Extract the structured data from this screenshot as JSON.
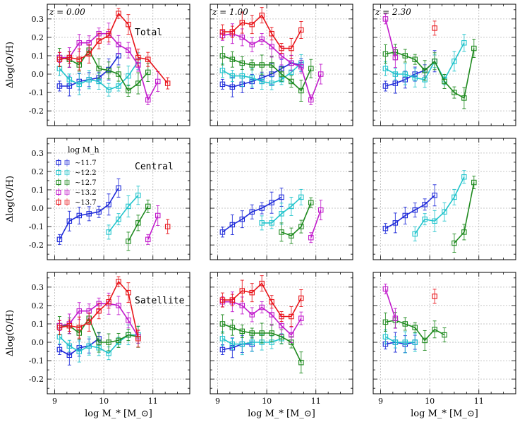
{
  "chart_data": {
    "type": "line",
    "grid": true,
    "x_axis": {
      "label": "log M_* [M_⊙]",
      "ticks": [
        "9",
        "10",
        "11"
      ],
      "tick_values": [
        9,
        10,
        11
      ],
      "range": [
        8.85,
        11.75
      ]
    },
    "y_axis": {
      "label": "Δlog(O/H)",
      "ticks": [
        "0.3",
        "0.2",
        "0.1",
        "0.0",
        "-0.1",
        "-0.2"
      ],
      "tick_values": [
        0.3,
        0.2,
        0.1,
        0.0,
        -0.1,
        -0.2
      ],
      "range": [
        -0.28,
        0.38
      ]
    },
    "rows": [
      "Total",
      "Central",
      "Satellite"
    ],
    "redshifts": [
      "z = 0.00",
      "z = 1.00",
      "z = 2.30"
    ],
    "legend": {
      "title": "log M_h",
      "entries": [
        "~11.7",
        "~12.2",
        "~12.7",
        "~13.2",
        "~13.7"
      ]
    },
    "series_colors": [
      "#1f2bd9",
      "#22c4cc",
      "#1e8a1e",
      "#c21ccc",
      "#e8141a"
    ],
    "panels": [
      {
        "row": "Total",
        "z": "z = 0.00",
        "series": [
          {
            "name": "~11.7",
            "x": [
              9.1,
              9.3,
              9.5,
              9.7,
              9.9,
              10.1,
              10.3
            ],
            "y": [
              -0.065,
              -0.065,
              -0.04,
              -0.03,
              -0.02,
              0.025,
              0.1
            ]
          },
          {
            "name": "~12.2",
            "x": [
              9.1,
              9.3,
              9.5,
              9.7,
              9.9,
              10.1,
              10.3,
              10.5,
              10.7
            ],
            "y": [
              0.03,
              -0.03,
              -0.055,
              -0.03,
              -0.04,
              -0.085,
              -0.065,
              -0.01,
              0.07
            ]
          },
          {
            "name": "~12.7",
            "x": [
              9.1,
              9.3,
              9.5,
              9.7,
              9.9,
              10.1,
              10.3,
              10.5,
              10.7,
              10.9
            ],
            "y": [
              0.09,
              0.08,
              0.05,
              0.13,
              0.03,
              0.02,
              0.0,
              -0.09,
              -0.05,
              0.01
            ]
          },
          {
            "name": "~13.2",
            "x": [
              9.1,
              9.3,
              9.5,
              9.7,
              9.9,
              10.1,
              10.3,
              10.5,
              10.7,
              10.9,
              11.1
            ],
            "y": [
              0.09,
              0.09,
              0.17,
              0.17,
              0.22,
              0.22,
              0.16,
              0.13,
              0.05,
              -0.14,
              -0.04
            ]
          },
          {
            "name": "~13.7",
            "x": [
              9.1,
              9.3,
              9.5,
              9.7,
              9.9,
              10.1,
              10.3,
              10.5,
              10.7,
              10.9,
              11.3
            ],
            "y": [
              0.08,
              0.09,
              0.08,
              0.11,
              0.18,
              0.21,
              0.33,
              0.27,
              0.09,
              0.08,
              -0.05
            ]
          }
        ]
      },
      {
        "row": "Total",
        "z": "z = 1.00",
        "series": [
          {
            "name": "~11.7",
            "x": [
              9.1,
              9.3,
              9.5,
              9.7,
              9.9,
              10.1,
              10.3,
              10.5,
              10.7
            ],
            "y": [
              -0.055,
              -0.07,
              -0.055,
              -0.04,
              -0.02,
              0.0,
              0.03,
              0.06,
              0.05
            ]
          },
          {
            "name": "~12.2",
            "x": [
              9.1,
              9.3,
              9.5,
              9.7,
              9.9,
              10.1,
              10.3,
              10.5,
              10.7
            ],
            "y": [
              0.02,
              -0.01,
              -0.01,
              -0.02,
              -0.04,
              -0.05,
              -0.03,
              0.01,
              0.06
            ]
          },
          {
            "name": "~12.7",
            "x": [
              9.1,
              9.3,
              9.5,
              9.7,
              9.9,
              10.1,
              10.3,
              10.5,
              10.7,
              10.9
            ],
            "y": [
              0.1,
              0.08,
              0.06,
              0.05,
              0.05,
              0.05,
              0.0,
              -0.04,
              -0.09,
              0.03
            ]
          },
          {
            "name": "~13.2",
            "x": [
              9.1,
              9.3,
              9.5,
              9.7,
              9.9,
              10.1,
              10.3,
              10.5,
              10.7,
              10.9,
              11.1
            ],
            "y": [
              0.21,
              0.22,
              0.2,
              0.16,
              0.19,
              0.15,
              0.1,
              0.06,
              0.04,
              -0.14,
              0.0
            ]
          },
          {
            "name": "~13.7",
            "x": [
              9.1,
              9.3,
              9.5,
              9.7,
              9.9,
              10.1,
              10.3,
              10.5,
              10.7
            ],
            "y": [
              0.23,
              0.23,
              0.28,
              0.27,
              0.32,
              0.22,
              0.14,
              0.14,
              0.24
            ]
          }
        ]
      },
      {
        "row": "Total",
        "z": "z = 2.30",
        "series": [
          {
            "name": "~11.7",
            "x": [
              9.1,
              9.3,
              9.5,
              9.7,
              9.9,
              10.1
            ],
            "y": [
              -0.065,
              -0.05,
              -0.03,
              0.0,
              0.02,
              0.07
            ]
          },
          {
            "name": "~12.2",
            "x": [
              9.1,
              9.3,
              9.5,
              9.7,
              9.9,
              10.1,
              10.3,
              10.5,
              10.7
            ],
            "y": [
              0.03,
              0.0,
              0.0,
              -0.02,
              -0.03,
              0.07,
              -0.03,
              0.07,
              0.17
            ]
          },
          {
            "name": "~12.7",
            "x": [
              9.1,
              9.3,
              9.5,
              9.7,
              9.9,
              10.1,
              10.3,
              10.5,
              10.7,
              10.9
            ],
            "y": [
              0.11,
              0.12,
              0.1,
              0.08,
              0.02,
              0.07,
              -0.04,
              -0.1,
              -0.13,
              0.14
            ]
          },
          {
            "name": "~13.2",
            "x": [
              9.1,
              9.3
            ],
            "y": [
              0.3,
              0.09
            ]
          },
          {
            "name": "~13.7",
            "x": [
              10.1
            ],
            "y": [
              0.25
            ]
          }
        ]
      },
      {
        "row": "Central",
        "z": "z = 0.00",
        "series": [
          {
            "name": "~11.7",
            "x": [
              9.1,
              9.3,
              9.5,
              9.7,
              9.9,
              10.1,
              10.3
            ],
            "y": [
              -0.17,
              -0.07,
              -0.04,
              -0.03,
              -0.02,
              0.02,
              0.11
            ]
          },
          {
            "name": "~12.2",
            "x": [
              10.1,
              10.3,
              10.5,
              10.7
            ],
            "y": [
              -0.13,
              -0.06,
              0.01,
              0.07
            ]
          },
          {
            "name": "~12.7",
            "x": [
              10.5,
              10.7,
              10.9
            ],
            "y": [
              -0.18,
              -0.08,
              0.01
            ]
          },
          {
            "name": "~13.2",
            "x": [
              10.9,
              11.1
            ],
            "y": [
              -0.17,
              -0.04
            ]
          },
          {
            "name": "~13.7",
            "x": [
              11.3
            ],
            "y": [
              -0.1
            ]
          }
        ]
      },
      {
        "row": "Central",
        "z": "z = 1.00",
        "series": [
          {
            "name": "~11.7",
            "x": [
              9.1,
              9.3,
              9.5,
              9.7,
              9.9,
              10.1,
              10.3
            ],
            "y": [
              -0.13,
              -0.09,
              -0.06,
              -0.02,
              0.0,
              0.03,
              0.06
            ]
          },
          {
            "name": "~12.2",
            "x": [
              9.9,
              10.1,
              10.3,
              10.5,
              10.7
            ],
            "y": [
              -0.08,
              -0.08,
              -0.03,
              0.01,
              0.06
            ]
          },
          {
            "name": "~12.7",
            "x": [
              10.3,
              10.5,
              10.7,
              10.9
            ],
            "y": [
              -0.13,
              -0.15,
              -0.1,
              0.03
            ]
          },
          {
            "name": "~13.2",
            "x": [
              10.9,
              11.1
            ],
            "y": [
              -0.16,
              -0.01
            ]
          },
          {
            "name": "~13.7",
            "x": [],
            "y": []
          }
        ]
      },
      {
        "row": "Central",
        "z": "z = 2.30",
        "series": [
          {
            "name": "~11.7",
            "x": [
              9.1,
              9.3,
              9.5,
              9.7,
              9.9,
              10.1
            ],
            "y": [
              -0.11,
              -0.08,
              -0.04,
              -0.01,
              0.02,
              0.07
            ]
          },
          {
            "name": "~12.2",
            "x": [
              9.7,
              9.9,
              10.1,
              10.3,
              10.5,
              10.7
            ],
            "y": [
              -0.14,
              -0.06,
              -0.07,
              -0.02,
              0.06,
              0.17
            ]
          },
          {
            "name": "~12.7",
            "x": [
              10.5,
              10.7,
              10.9
            ],
            "y": [
              -0.19,
              -0.13,
              0.14
            ]
          },
          {
            "name": "~13.2",
            "x": [],
            "y": []
          },
          {
            "name": "~13.7",
            "x": [],
            "y": []
          }
        ]
      },
      {
        "row": "Satellite",
        "z": "z = 0.00",
        "series": [
          {
            "name": "~11.7",
            "x": [
              9.1,
              9.3,
              9.5,
              9.7,
              9.9
            ],
            "y": [
              -0.04,
              -0.07,
              -0.03,
              -0.02,
              0.02
            ]
          },
          {
            "name": "~12.2",
            "x": [
              9.1,
              9.3,
              9.5,
              9.7,
              9.9,
              10.1,
              10.3,
              10.5,
              10.7
            ],
            "y": [
              0.03,
              -0.02,
              -0.05,
              -0.02,
              -0.03,
              -0.06,
              0.0,
              0.04,
              0.04
            ]
          },
          {
            "name": "~12.7",
            "x": [
              9.1,
              9.3,
              9.5,
              9.7,
              9.9,
              10.1,
              10.3,
              10.5,
              10.7
            ],
            "y": [
              0.09,
              0.09,
              0.05,
              0.13,
              0.0,
              0.0,
              0.01,
              0.04,
              0.03
            ]
          },
          {
            "name": "~13.2",
            "x": [
              9.1,
              9.3,
              9.5,
              9.7,
              9.9,
              10.1,
              10.3,
              10.5,
              10.7
            ],
            "y": [
              0.09,
              0.1,
              0.17,
              0.17,
              0.21,
              0.21,
              0.2,
              0.12,
              0.03
            ]
          },
          {
            "name": "~13.7",
            "x": [
              9.1,
              9.3,
              9.5,
              9.7,
              9.9,
              10.1,
              10.3,
              10.5,
              10.7
            ],
            "y": [
              0.08,
              0.09,
              0.08,
              0.11,
              0.17,
              0.22,
              0.33,
              0.27,
              0.02
            ]
          }
        ]
      },
      {
        "row": "Satellite",
        "z": "z = 1.00",
        "series": [
          {
            "name": "~11.7",
            "x": [
              9.1,
              9.3,
              9.5,
              9.7
            ],
            "y": [
              -0.04,
              -0.03,
              -0.01,
              -0.01
            ]
          },
          {
            "name": "~12.2",
            "x": [
              9.1,
              9.3,
              9.5,
              9.7,
              9.9,
              10.1,
              10.3
            ],
            "y": [
              0.02,
              -0.01,
              -0.01,
              0.0,
              0.0,
              0.0,
              0.02
            ]
          },
          {
            "name": "~12.7",
            "x": [
              9.1,
              9.3,
              9.5,
              9.7,
              9.9,
              10.1,
              10.3,
              10.5,
              10.7
            ],
            "y": [
              0.1,
              0.08,
              0.06,
              0.05,
              0.05,
              0.05,
              0.03,
              0.0,
              -0.11
            ]
          },
          {
            "name": "~13.2",
            "x": [
              9.1,
              9.3,
              9.5,
              9.7,
              9.9,
              10.1,
              10.3,
              10.5,
              10.7
            ],
            "y": [
              0.22,
              0.22,
              0.2,
              0.15,
              0.19,
              0.15,
              0.09,
              0.04,
              0.13
            ]
          },
          {
            "name": "~13.7",
            "x": [
              9.1,
              9.3,
              9.5,
              9.7,
              9.9,
              10.1,
              10.3,
              10.5,
              10.7
            ],
            "y": [
              0.23,
              0.23,
              0.28,
              0.27,
              0.32,
              0.22,
              0.14,
              0.14,
              0.24
            ]
          }
        ]
      },
      {
        "row": "Satellite",
        "z": "z = 2.30",
        "series": [
          {
            "name": "~11.7",
            "x": [
              9.1,
              9.3,
              9.5,
              9.7
            ],
            "y": [
              -0.01,
              0.0,
              -0.01,
              0.0
            ]
          },
          {
            "name": "~12.2",
            "x": [
              9.1,
              9.3,
              9.5,
              9.7
            ],
            "y": [
              0.03,
              0.0,
              0.0,
              0.0
            ]
          },
          {
            "name": "~12.7",
            "x": [
              9.1,
              9.3,
              9.5,
              9.7,
              9.9,
              10.1,
              10.3
            ],
            "y": [
              0.11,
              0.12,
              0.1,
              0.08,
              0.01,
              0.07,
              0.04
            ]
          },
          {
            "name": "~13.2",
            "x": [
              9.1,
              9.3
            ],
            "y": [
              0.29,
              0.13
            ]
          },
          {
            "name": "~13.7",
            "x": [
              10.1
            ],
            "y": [
              0.25
            ]
          }
        ]
      }
    ]
  }
}
